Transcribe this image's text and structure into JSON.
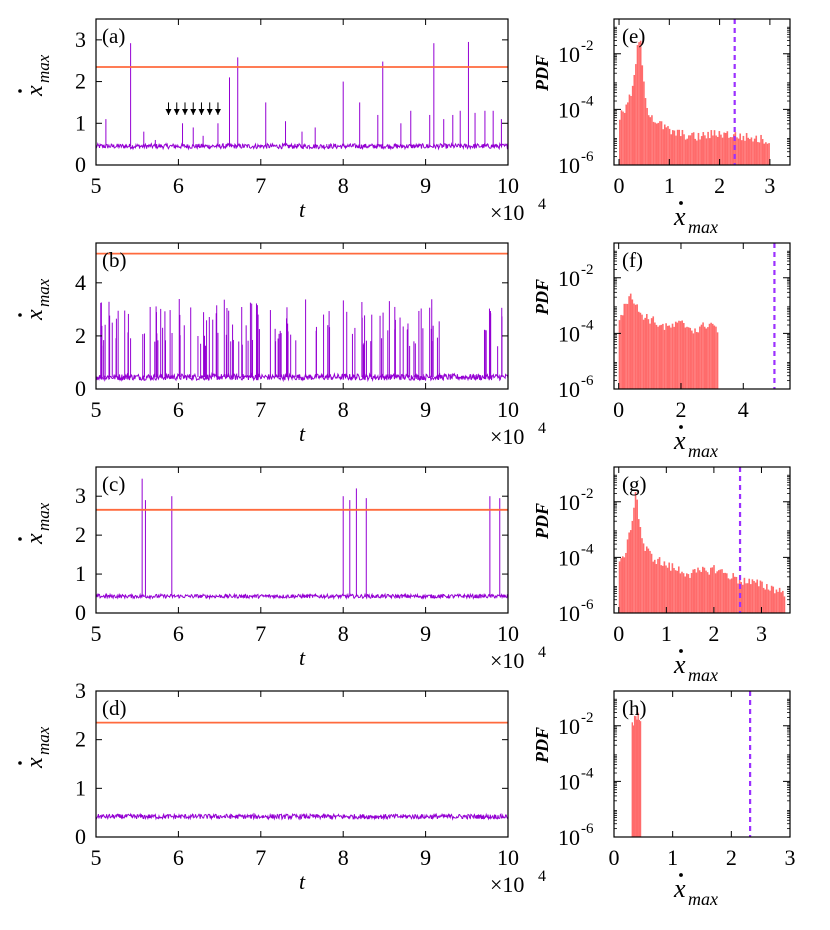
{
  "colors": {
    "series": "#9400d3",
    "threshold": "#ff6a3d",
    "histogram": "#ff6b6b",
    "dashed": "#9b30ff",
    "axis": "#000000"
  },
  "time_tick_labels": [
    "5",
    "6",
    "7",
    "8",
    "9",
    "10"
  ],
  "exponent_label": {
    "base": "×10",
    "exp": "4"
  },
  "pdf_tick_labels": [
    {
      "base": "10",
      "exp": "-2"
    },
    {
      "base": "10",
      "exp": "-4"
    },
    {
      "base": "10",
      "exp": "-6"
    }
  ],
  "chart_data": [
    {
      "panel": "(a)",
      "type": "line",
      "xlabel": "t",
      "ylabel": "ẋmax",
      "ylabel_main": "x",
      "ylabel_sub": "max",
      "xlim": [
        5,
        10
      ],
      "ylim": [
        0,
        3.5
      ],
      "yticks": [
        "0",
        "1",
        "2",
        "3"
      ],
      "ytick_values": [
        0,
        1,
        2,
        3
      ],
      "threshold": 2.35,
      "baseline": 0.45,
      "noise": 0.06,
      "spikes": [
        [
          5.12,
          1.1
        ],
        [
          5.42,
          2.92
        ],
        [
          5.58,
          0.8
        ],
        [
          5.72,
          0.6
        ],
        [
          6.05,
          1.0
        ],
        [
          6.18,
          0.9
        ],
        [
          6.3,
          0.7
        ],
        [
          6.48,
          1.0
        ],
        [
          6.62,
          2.1
        ],
        [
          6.72,
          2.58
        ],
        [
          7.06,
          1.5
        ],
        [
          7.3,
          1.05
        ],
        [
          7.5,
          0.8
        ],
        [
          7.66,
          0.9
        ],
        [
          7.8,
          0.5
        ],
        [
          8.0,
          2.0
        ],
        [
          8.2,
          1.5
        ],
        [
          8.42,
          1.2
        ],
        [
          8.48,
          2.48
        ],
        [
          8.7,
          1.0
        ],
        [
          8.82,
          1.3
        ],
        [
          9.05,
          1.2
        ],
        [
          9.1,
          2.92
        ],
        [
          9.22,
          1.1
        ],
        [
          9.33,
          1.2
        ],
        [
          9.42,
          1.3
        ],
        [
          9.52,
          2.95
        ],
        [
          9.6,
          1.25
        ],
        [
          9.72,
          1.3
        ],
        [
          9.82,
          1.3
        ],
        [
          9.92,
          1.1
        ]
      ],
      "arrows_x": [
        5.88,
        5.98,
        6.08,
        6.18,
        6.28,
        6.38,
        6.48
      ],
      "arrow_top": 1.5,
      "arrow_bottom": 1.2
    },
    {
      "panel": "(b)",
      "type": "line",
      "xlabel": "t",
      "ylabel": "ẋmax",
      "ylabel_main": "x",
      "ylabel_sub": "max",
      "xlim": [
        5,
        10
      ],
      "ylim": [
        0,
        5.5
      ],
      "yticks": [
        "0",
        "2",
        "4"
      ],
      "ytick_values": [
        0,
        2,
        4
      ],
      "threshold": 5.1,
      "baseline": 0.45,
      "noise": 0.12,
      "dense_spikes": {
        "count": 150,
        "start": 5.05,
        "end": 9.95,
        "min": 1.6,
        "max": 3.4,
        "gap": [
          9.25,
          9.7
        ]
      },
      "spikes": [],
      "arrows_x": []
    },
    {
      "panel": "(c)",
      "type": "line",
      "xlabel": "t",
      "ylabel": "ẋmax",
      "ylabel_main": "x",
      "ylabel_sub": "max",
      "xlim": [
        5,
        10
      ],
      "ylim": [
        0,
        3.75
      ],
      "yticks": [
        "0",
        "1",
        "2",
        "3"
      ],
      "ytick_values": [
        0,
        1,
        2,
        3
      ],
      "threshold": 2.65,
      "baseline": 0.43,
      "noise": 0.05,
      "spikes": [
        [
          5.56,
          3.45
        ],
        [
          5.6,
          2.9
        ],
        [
          5.92,
          3.0
        ],
        [
          8.0,
          3.0
        ],
        [
          8.08,
          2.9
        ],
        [
          8.16,
          3.2
        ],
        [
          8.28,
          2.95
        ],
        [
          9.78,
          3.0
        ],
        [
          9.9,
          2.95
        ]
      ],
      "arrows_x": []
    },
    {
      "panel": "(d)",
      "type": "line",
      "xlabel": "t",
      "ylabel": "ẋmax",
      "ylabel_main": "x",
      "ylabel_sub": "max",
      "xlim": [
        5,
        10
      ],
      "ylim": [
        0,
        3
      ],
      "yticks": [
        "0",
        "1",
        "2",
        "3"
      ],
      "ytick_values": [
        0,
        1,
        2,
        3
      ],
      "threshold": 2.35,
      "baseline": 0.42,
      "noise": 0.05,
      "spikes": [],
      "arrows_x": []
    },
    {
      "panel": "(e)",
      "type": "bar",
      "xlabel": "ẋmax",
      "ylabel": "PDF",
      "xlim": [
        -0.1,
        3.4
      ],
      "xticks": [
        "0",
        "1",
        "2",
        "3"
      ],
      "xtick_values": [
        0,
        1,
        2,
        3
      ],
      "dashed_x": 2.3,
      "hist_profile": [
        [
          0.0,
          -4.3
        ],
        [
          0.1,
          -4.0
        ],
        [
          0.2,
          -3.6
        ],
        [
          0.3,
          -2.8
        ],
        [
          0.35,
          -1.8
        ],
        [
          0.4,
          -1.3
        ],
        [
          0.45,
          -2.6
        ],
        [
          0.55,
          -4.0
        ],
        [
          0.7,
          -4.4
        ],
        [
          1.0,
          -4.8
        ],
        [
          1.5,
          -5.0
        ],
        [
          2.0,
          -4.85
        ],
        [
          2.5,
          -5.0
        ],
        [
          2.9,
          -5.1
        ],
        [
          3.0,
          -5.2
        ]
      ]
    },
    {
      "panel": "(f)",
      "type": "bar",
      "xlabel": "ẋmax",
      "ylabel": "PDF",
      "xlim": [
        -0.15,
        5.5
      ],
      "xticks": [
        "0",
        "2",
        "4"
      ],
      "xtick_values": [
        0,
        2,
        4
      ],
      "dashed_x": 5.0,
      "hist_profile": [
        [
          0.0,
          -3.4
        ],
        [
          0.2,
          -3.0
        ],
        [
          0.35,
          -2.4
        ],
        [
          0.45,
          -2.9
        ],
        [
          0.7,
          -3.3
        ],
        [
          1.0,
          -3.5
        ],
        [
          1.5,
          -3.8
        ],
        [
          2.0,
          -3.65
        ],
        [
          2.5,
          -3.9
        ],
        [
          2.9,
          -3.6
        ],
        [
          3.1,
          -3.8
        ],
        [
          3.2,
          -3.9
        ]
      ]
    },
    {
      "panel": "(g)",
      "type": "bar",
      "xlabel": "ẋmax",
      "ylabel": "PDF",
      "xlim": [
        -0.1,
        3.6
      ],
      "xticks": [
        "0",
        "1",
        "2",
        "3"
      ],
      "xtick_values": [
        0,
        1,
        2,
        3
      ],
      "dashed_x": 2.55,
      "hist_profile": [
        [
          0.0,
          -4.3
        ],
        [
          0.1,
          -3.9
        ],
        [
          0.2,
          -3.3
        ],
        [
          0.3,
          -2.2
        ],
        [
          0.35,
          -1.5
        ],
        [
          0.4,
          -2.5
        ],
        [
          0.5,
          -3.6
        ],
        [
          0.7,
          -4.0
        ],
        [
          1.0,
          -4.3
        ],
        [
          1.5,
          -4.6
        ],
        [
          2.0,
          -4.4
        ],
        [
          2.5,
          -4.8
        ],
        [
          3.0,
          -5.0
        ],
        [
          3.4,
          -5.2
        ],
        [
          3.5,
          -5.4
        ]
      ]
    },
    {
      "panel": "(h)",
      "type": "bar",
      "xlabel": "ẋmax",
      "ylabel": "PDF",
      "xlim": [
        0,
        3
      ],
      "xticks": [
        "0",
        "1",
        "2",
        "3"
      ],
      "xtick_values": [
        0,
        1,
        2,
        3
      ],
      "dashed_x": 2.32,
      "hist_profile": [
        [
          0.3,
          -1.9
        ],
        [
          0.34,
          -1.75
        ],
        [
          0.38,
          -1.7
        ],
        [
          0.42,
          -1.65
        ],
        [
          0.46,
          -1.7
        ]
      ]
    }
  ]
}
